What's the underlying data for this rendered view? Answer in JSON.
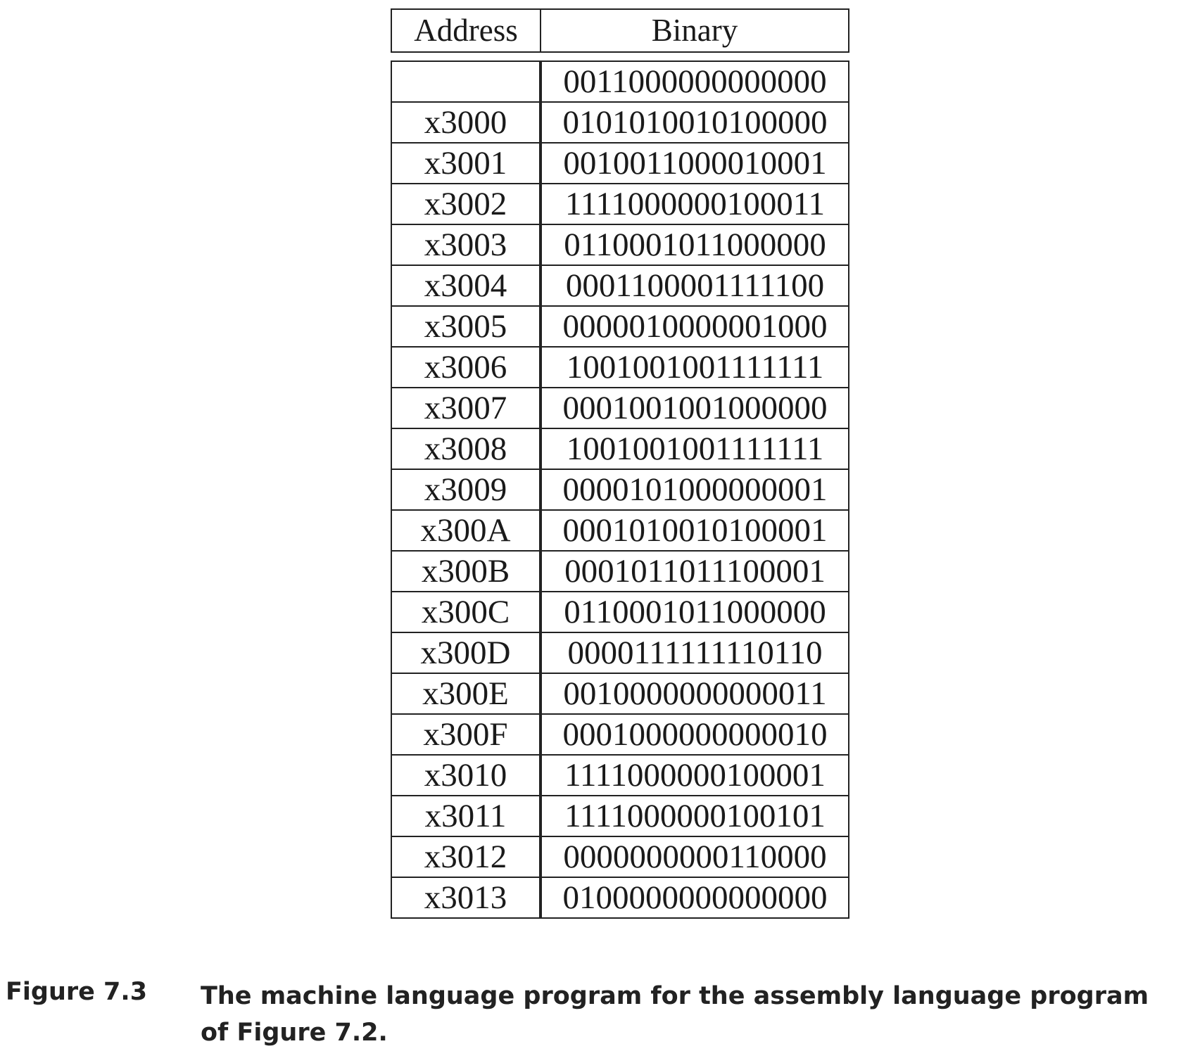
{
  "table": {
    "headers": {
      "address": "Address",
      "binary": "Binary"
    },
    "rows": [
      {
        "address": "",
        "binary": "0011000000000000"
      },
      {
        "address": "x3000",
        "binary": "0101010010100000"
      },
      {
        "address": "x3001",
        "binary": "0010011000010001"
      },
      {
        "address": "x3002",
        "binary": "1111000000100011"
      },
      {
        "address": "x3003",
        "binary": "0110001011000000"
      },
      {
        "address": "x3004",
        "binary": "0001100001111100"
      },
      {
        "address": "x3005",
        "binary": "0000010000001000"
      },
      {
        "address": "x3006",
        "binary": "1001001001111111"
      },
      {
        "address": "x3007",
        "binary": "0001001001000000"
      },
      {
        "address": "x3008",
        "binary": "1001001001111111"
      },
      {
        "address": "x3009",
        "binary": "0000101000000001"
      },
      {
        "address": "x300A",
        "binary": "0001010010100001"
      },
      {
        "address": "x300B",
        "binary": "0001011011100001"
      },
      {
        "address": "x300C",
        "binary": "0110001011000000"
      },
      {
        "address": "x300D",
        "binary": "0000111111110110"
      },
      {
        "address": "x300E",
        "binary": "0010000000000011"
      },
      {
        "address": "x300F",
        "binary": "0001000000000010"
      },
      {
        "address": "x3010",
        "binary": "1111000000100001"
      },
      {
        "address": "x3011",
        "binary": "1111000000100101"
      },
      {
        "address": "x3012",
        "binary": "0000000000110000"
      },
      {
        "address": "x3013",
        "binary": "0100000000000000"
      }
    ]
  },
  "caption": {
    "label": "Figure 7.3",
    "text": "The machine language program for the assembly language program of Figure 7.2."
  }
}
